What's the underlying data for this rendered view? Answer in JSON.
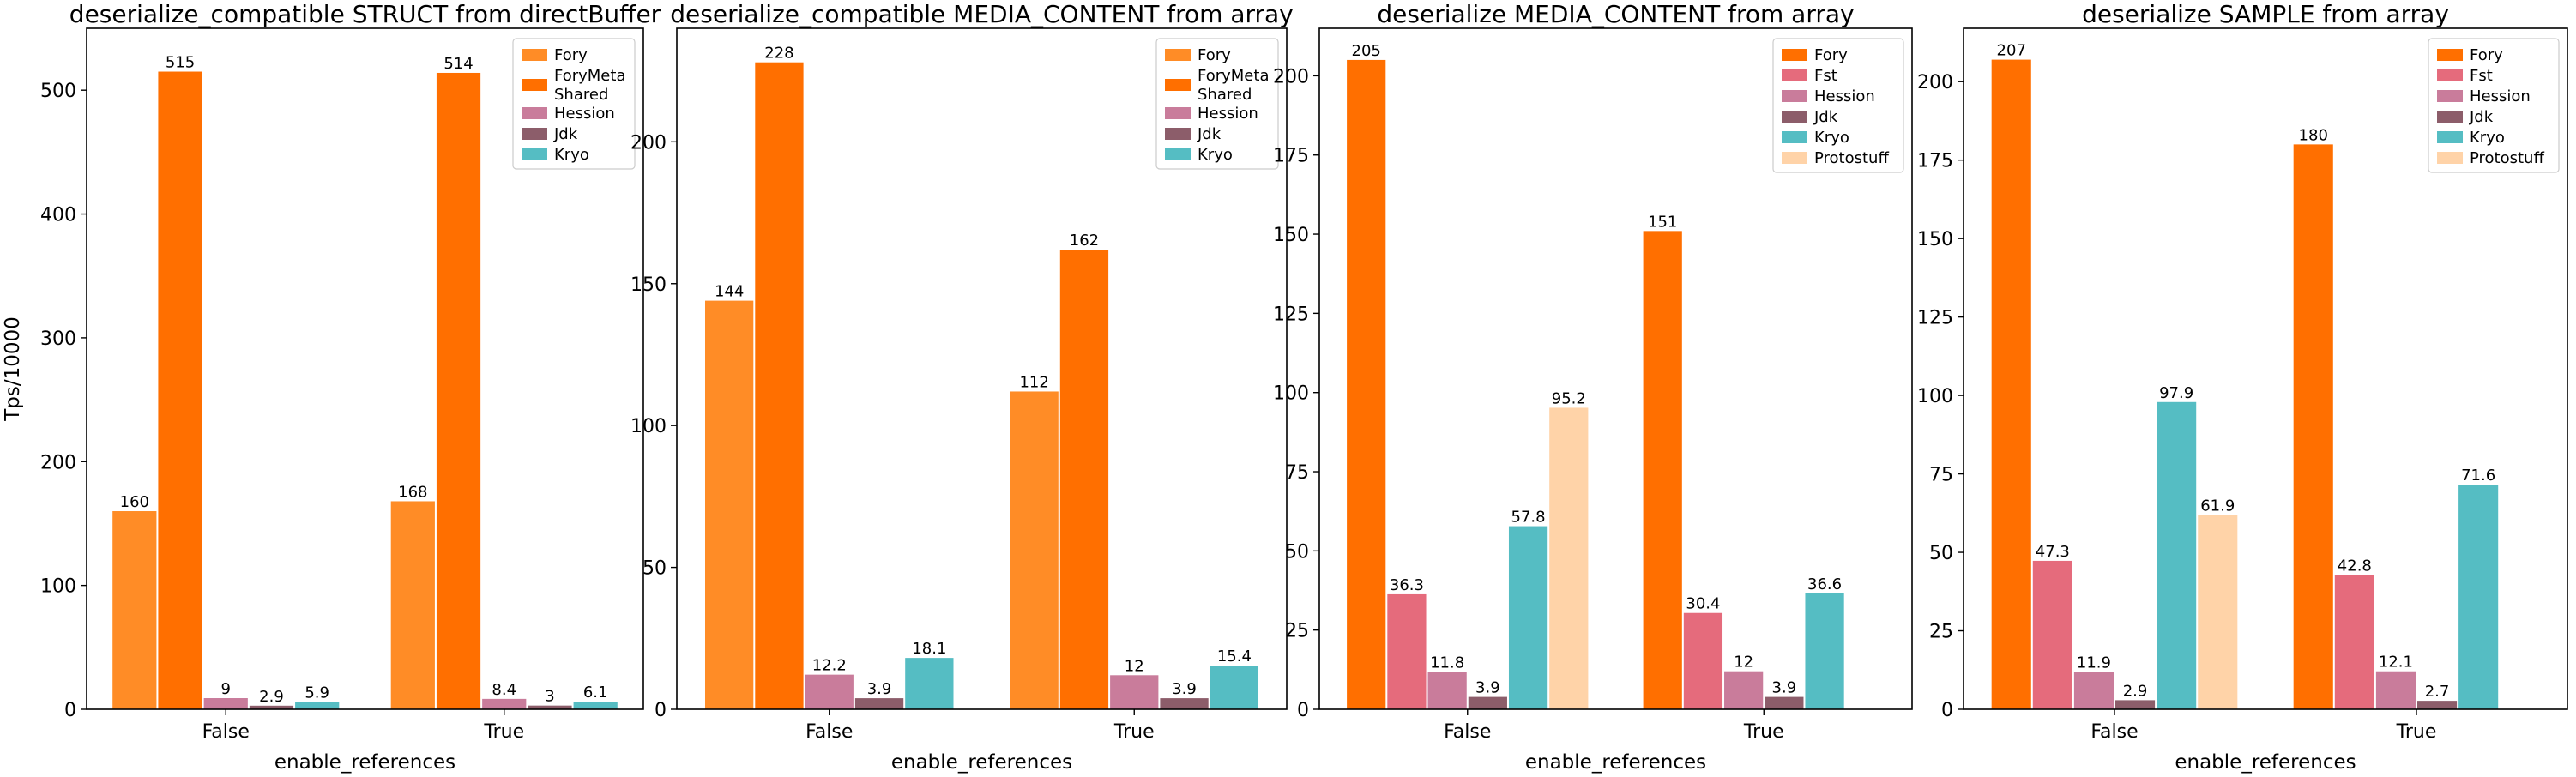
{
  "colors": {
    "Fory": "#ff8c26",
    "Fory_dark": "#ff6f00",
    "ForyMetaShared": "#ff6f00",
    "Fst": "#e56b7c",
    "Hession": "#c97c9b",
    "Jdk": "#8c5d6a",
    "Kryo": "#55bdc3",
    "Protostuff": "#ffd3a8"
  },
  "chart_data": [
    {
      "type": "bar",
      "title": "deserialize_compatible STRUCT from directBuffer",
      "xlabel": "enable_references",
      "ylabel": "Tps/10000",
      "categories": [
        "False",
        "True"
      ],
      "ylim": [
        0,
        550
      ],
      "yticks": [
        0,
        100,
        200,
        300,
        400,
        500
      ],
      "series": [
        {
          "name": "Fory",
          "color": "#ff8c26",
          "values": [
            160,
            168
          ],
          "labels": [
            "160",
            "168"
          ]
        },
        {
          "name": "ForyMeta\nShared",
          "color": "#ff6f00",
          "values": [
            515,
            514
          ],
          "labels": [
            "515",
            "514"
          ]
        },
        {
          "name": "Hession",
          "color": "#c97c9b",
          "values": [
            9,
            8.4
          ],
          "labels": [
            "9",
            "8.4"
          ]
        },
        {
          "name": "Jdk",
          "color": "#8c5d6a",
          "values": [
            2.9,
            3
          ],
          "labels": [
            "2.9",
            "3"
          ]
        },
        {
          "name": "Kryo",
          "color": "#55bdc3",
          "values": [
            5.9,
            6.1
          ],
          "labels": [
            "5.9",
            "6.1"
          ]
        }
      ],
      "legend": "top-right"
    },
    {
      "type": "bar",
      "title": "deserialize_compatible MEDIA_CONTENT from array",
      "xlabel": "enable_references",
      "ylabel": "",
      "categories": [
        "False",
        "True"
      ],
      "ylim": [
        0,
        240
      ],
      "yticks": [
        0,
        50,
        100,
        150,
        200
      ],
      "series": [
        {
          "name": "Fory",
          "color": "#ff8c26",
          "values": [
            144,
            112
          ],
          "labels": [
            "144",
            "112"
          ]
        },
        {
          "name": "ForyMeta\nShared",
          "color": "#ff6f00",
          "values": [
            228,
            162
          ],
          "labels": [
            "228",
            "162"
          ]
        },
        {
          "name": "Hession",
          "color": "#c97c9b",
          "values": [
            12.2,
            12
          ],
          "labels": [
            "12.2",
            "12"
          ]
        },
        {
          "name": "Jdk",
          "color": "#8c5d6a",
          "values": [
            3.9,
            3.9
          ],
          "labels": [
            "3.9",
            "3.9"
          ]
        },
        {
          "name": "Kryo",
          "color": "#55bdc3",
          "values": [
            18.1,
            15.4
          ],
          "labels": [
            "18.1",
            "15.4"
          ]
        }
      ],
      "legend": "top-right"
    },
    {
      "type": "bar",
      "title": "deserialize MEDIA_CONTENT from array",
      "xlabel": "enable_references",
      "ylabel": "",
      "categories": [
        "False",
        "True"
      ],
      "ylim": [
        0,
        215
      ],
      "yticks": [
        0,
        25,
        50,
        75,
        100,
        125,
        150,
        175,
        200
      ],
      "series": [
        {
          "name": "Fory",
          "color": "#ff6f00",
          "values": [
            205,
            151
          ],
          "labels": [
            "205",
            "151"
          ]
        },
        {
          "name": "Fst",
          "color": "#e56b7c",
          "values": [
            36.3,
            30.4
          ],
          "labels": [
            "36.3",
            "30.4"
          ]
        },
        {
          "name": "Hession",
          "color": "#c97c9b",
          "values": [
            11.8,
            12
          ],
          "labels": [
            "11.8",
            "12"
          ]
        },
        {
          "name": "Jdk",
          "color": "#8c5d6a",
          "values": [
            3.9,
            3.9
          ],
          "labels": [
            "3.9",
            "3.9"
          ]
        },
        {
          "name": "Kryo",
          "color": "#55bdc3",
          "values": [
            57.8,
            36.6
          ],
          "labels": [
            "57.8",
            "36.6"
          ]
        },
        {
          "name": "Protostuff",
          "color": "#ffd3a8",
          "values": [
            95.2,
            null
          ],
          "labels": [
            "95.2",
            ""
          ]
        }
      ],
      "legend": "top-right"
    },
    {
      "type": "bar",
      "title": "deserialize SAMPLE from array",
      "xlabel": "enable_references",
      "ylabel": "",
      "categories": [
        "False",
        "True"
      ],
      "ylim": [
        0,
        217
      ],
      "yticks": [
        0,
        25,
        50,
        75,
        100,
        125,
        150,
        175,
        200
      ],
      "series": [
        {
          "name": "Fory",
          "color": "#ff6f00",
          "values": [
            207,
            180
          ],
          "labels": [
            "207",
            "180"
          ]
        },
        {
          "name": "Fst",
          "color": "#e56b7c",
          "values": [
            47.3,
            42.8
          ],
          "labels": [
            "47.3",
            "42.8"
          ]
        },
        {
          "name": "Hession",
          "color": "#c97c9b",
          "values": [
            11.9,
            12.1
          ],
          "labels": [
            "11.9",
            "12.1"
          ]
        },
        {
          "name": "Jdk",
          "color": "#8c5d6a",
          "values": [
            2.9,
            2.7
          ],
          "labels": [
            "2.9",
            "2.7"
          ]
        },
        {
          "name": "Kryo",
          "color": "#55bdc3",
          "values": [
            97.9,
            71.6
          ],
          "labels": [
            "97.9",
            "71.6"
          ]
        },
        {
          "name": "Protostuff",
          "color": "#ffd3a8",
          "values": [
            61.9,
            null
          ],
          "labels": [
            "61.9",
            ""
          ]
        }
      ],
      "legend": "top-right"
    }
  ]
}
